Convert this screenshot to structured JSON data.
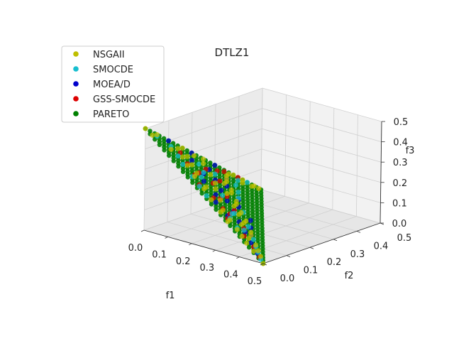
{
  "chart_data": {
    "type": "scatter",
    "projection": "3d",
    "title": "DTLZ1",
    "xlabel": "f1",
    "ylabel": "f2",
    "zlabel": "f3",
    "xlim": [
      0.0,
      0.5
    ],
    "ylim": [
      0.0,
      0.5
    ],
    "zlim": [
      0.0,
      0.5
    ],
    "xticks": [
      "0.0",
      "0.1",
      "0.2",
      "0.3",
      "0.4",
      "0.5"
    ],
    "yticks": [
      "0.0",
      "0.1",
      "0.2",
      "0.3",
      "0.4",
      "0.5"
    ],
    "zticks": [
      "0.0",
      "0.1",
      "0.2",
      "0.3",
      "0.4",
      "0.5"
    ],
    "grid": true,
    "legend_position": "top-left",
    "constraint": "f1 + f2 + f3 = 0.5",
    "series": [
      {
        "name": "NSGAII",
        "color": "#bfbf00",
        "points": [
          [
            0.5,
            0.0,
            0.0
          ],
          [
            0.46,
            0.03,
            0.01
          ],
          [
            0.43,
            0.05,
            0.02
          ],
          [
            0.4,
            0.07,
            0.03
          ],
          [
            0.38,
            0.06,
            0.06
          ],
          [
            0.35,
            0.1,
            0.05
          ],
          [
            0.33,
            0.12,
            0.05
          ],
          [
            0.31,
            0.1,
            0.09
          ],
          [
            0.29,
            0.13,
            0.08
          ],
          [
            0.27,
            0.16,
            0.07
          ],
          [
            0.25,
            0.15,
            0.1
          ],
          [
            0.23,
            0.18,
            0.09
          ],
          [
            0.21,
            0.17,
            0.12
          ],
          [
            0.19,
            0.2,
            0.11
          ],
          [
            0.17,
            0.22,
            0.11
          ],
          [
            0.15,
            0.2,
            0.15
          ],
          [
            0.13,
            0.24,
            0.13
          ],
          [
            0.11,
            0.26,
            0.13
          ],
          [
            0.09,
            0.25,
            0.16
          ],
          [
            0.07,
            0.28,
            0.15
          ],
          [
            0.05,
            0.3,
            0.15
          ],
          [
            0.03,
            0.32,
            0.15
          ],
          [
            0.01,
            0.35,
            0.14
          ],
          [
            0.0,
            0.38,
            0.12
          ],
          [
            0.02,
            0.4,
            0.08
          ],
          [
            0.0,
            0.42,
            0.08
          ],
          [
            0.01,
            0.45,
            0.04
          ],
          [
            0.0,
            0.47,
            0.03
          ],
          [
            0.0,
            0.49,
            0.01
          ],
          [
            0.2,
            0.05,
            0.25
          ],
          [
            0.18,
            0.08,
            0.24
          ],
          [
            0.15,
            0.06,
            0.29
          ],
          [
            0.12,
            0.1,
            0.28
          ],
          [
            0.1,
            0.08,
            0.32
          ],
          [
            0.08,
            0.12,
            0.3
          ],
          [
            0.06,
            0.1,
            0.34
          ],
          [
            0.04,
            0.14,
            0.32
          ],
          [
            0.02,
            0.12,
            0.36
          ],
          [
            0.0,
            0.16,
            0.34
          ],
          [
            0.01,
            0.2,
            0.29
          ],
          [
            0.03,
            0.22,
            0.25
          ],
          [
            0.0,
            0.25,
            0.25
          ],
          [
            0.25,
            0.03,
            0.22
          ],
          [
            0.28,
            0.05,
            0.17
          ],
          [
            0.3,
            0.02,
            0.18
          ],
          [
            0.32,
            0.04,
            0.14
          ],
          [
            0.34,
            0.01,
            0.15
          ],
          [
            0.36,
            0.03,
            0.11
          ],
          [
            0.39,
            0.02,
            0.09
          ],
          [
            0.42,
            0.01,
            0.07
          ],
          [
            0.45,
            0.01,
            0.04
          ],
          [
            0.22,
            0.1,
            0.18
          ],
          [
            0.16,
            0.14,
            0.2
          ],
          [
            0.12,
            0.18,
            0.2
          ],
          [
            0.08,
            0.2,
            0.22
          ],
          [
            0.05,
            0.06,
            0.39
          ],
          [
            0.0,
            0.05,
            0.45
          ],
          [
            0.02,
            0.01,
            0.47
          ],
          [
            0.0,
            0.0,
            0.5
          ]
        ]
      },
      {
        "name": "SMOCDE",
        "color": "#17becf",
        "points": [
          [
            0.48,
            0.01,
            0.01
          ],
          [
            0.44,
            0.04,
            0.02
          ],
          [
            0.41,
            0.06,
            0.03
          ],
          [
            0.37,
            0.09,
            0.04
          ],
          [
            0.34,
            0.08,
            0.08
          ],
          [
            0.3,
            0.14,
            0.06
          ],
          [
            0.26,
            0.12,
            0.12
          ],
          [
            0.22,
            0.2,
            0.08
          ],
          [
            0.18,
            0.15,
            0.17
          ],
          [
            0.14,
            0.26,
            0.1
          ],
          [
            0.1,
            0.3,
            0.1
          ],
          [
            0.06,
            0.33,
            0.11
          ],
          [
            0.02,
            0.38,
            0.1
          ],
          [
            0.0,
            0.44,
            0.06
          ],
          [
            0.24,
            0.02,
            0.24
          ],
          [
            0.2,
            0.03,
            0.27
          ],
          [
            0.16,
            0.04,
            0.3
          ],
          [
            0.11,
            0.05,
            0.34
          ],
          [
            0.07,
            0.07,
            0.36
          ],
          [
            0.03,
            0.08,
            0.39
          ],
          [
            0.01,
            0.04,
            0.45
          ],
          [
            0.05,
            0.18,
            0.27
          ],
          [
            0.09,
            0.16,
            0.25
          ],
          [
            0.13,
            0.11,
            0.26
          ],
          [
            0.27,
            0.1,
            0.13
          ],
          [
            0.31,
            0.05,
            0.14
          ],
          [
            0.35,
            0.04,
            0.11
          ],
          [
            0.06,
            0.24,
            0.2
          ]
        ]
      },
      {
        "name": "MOEA/D",
        "color": "#0000cc",
        "points": [
          [
            0.45,
            0.025,
            0.025
          ],
          [
            0.4,
            0.05,
            0.05
          ],
          [
            0.35,
            0.075,
            0.075
          ],
          [
            0.3,
            0.1,
            0.1
          ],
          [
            0.25,
            0.125,
            0.125
          ],
          [
            0.2,
            0.15,
            0.15
          ],
          [
            0.15,
            0.175,
            0.175
          ],
          [
            0.1,
            0.2,
            0.2
          ],
          [
            0.05,
            0.225,
            0.225
          ],
          [
            0.3,
            0.05,
            0.15
          ],
          [
            0.25,
            0.05,
            0.2
          ],
          [
            0.2,
            0.1,
            0.2
          ],
          [
            0.15,
            0.1,
            0.25
          ],
          [
            0.1,
            0.15,
            0.25
          ],
          [
            0.05,
            0.15,
            0.3
          ],
          [
            0.35,
            0.1,
            0.05
          ],
          [
            0.3,
            0.15,
            0.05
          ],
          [
            0.25,
            0.2,
            0.05
          ],
          [
            0.2,
            0.2,
            0.1
          ],
          [
            0.15,
            0.25,
            0.1
          ],
          [
            0.1,
            0.25,
            0.15
          ],
          [
            0.05,
            0.3,
            0.15
          ],
          [
            0.0,
            0.3,
            0.2
          ],
          [
            0.0,
            0.2,
            0.3
          ],
          [
            0.0,
            0.1,
            0.4
          ]
        ]
      },
      {
        "name": "GSS-SMOCDE",
        "color": "#dd0000",
        "points": [
          [
            0.47,
            0.015,
            0.015
          ],
          [
            0.42,
            0.04,
            0.04
          ],
          [
            0.38,
            0.04,
            0.08
          ],
          [
            0.33,
            0.09,
            0.08
          ],
          [
            0.28,
            0.08,
            0.14
          ],
          [
            0.24,
            0.14,
            0.12
          ],
          [
            0.21,
            0.11,
            0.18
          ],
          [
            0.17,
            0.18,
            0.15
          ],
          [
            0.13,
            0.16,
            0.21
          ],
          [
            0.09,
            0.23,
            0.18
          ],
          [
            0.06,
            0.2,
            0.24
          ],
          [
            0.03,
            0.28,
            0.19
          ],
          [
            0.01,
            0.33,
            0.16
          ],
          [
            0.0,
            0.4,
            0.1
          ],
          [
            0.19,
            0.04,
            0.27
          ],
          [
            0.14,
            0.07,
            0.29
          ],
          [
            0.09,
            0.09,
            0.32
          ],
          [
            0.04,
            0.11,
            0.35
          ],
          [
            0.32,
            0.03,
            0.15
          ],
          [
            0.27,
            0.06,
            0.17
          ],
          [
            0.23,
            0.06,
            0.21
          ],
          [
            0.11,
            0.12,
            0.27
          ]
        ]
      },
      {
        "name": "PARETO",
        "color": "#008000",
        "grid_step": 0.02
      }
    ]
  }
}
